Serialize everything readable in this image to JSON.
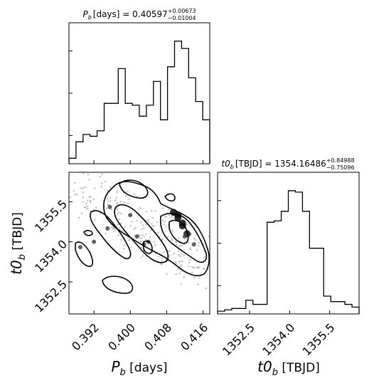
{
  "chart_data": {
    "type": "corner",
    "panels": {
      "pb_hist": {
        "type": "histogram",
        "title_main": "P",
        "title_sub": "b",
        "title_unit": "[days] = 0.40597",
        "title_plus": "+0.00673",
        "title_minus": "−0.01004",
        "xlim": [
          0.3865,
          0.4175
        ],
        "bin_width": 0.00155,
        "counts": [
          3,
          12,
          16,
          15,
          18,
          33,
          33,
          52,
          33,
          32,
          26,
          32,
          45,
          24,
          53,
          67,
          63,
          47,
          34,
          24
        ]
      },
      "t0_hist": {
        "type": "histogram",
        "title_main": "t0",
        "title_sub": "b",
        "title_unit": "[TBJD] = 1354.16486",
        "title_plus": "+0.84988",
        "title_minus": "−0.75096",
        "xlim": [
          1351.3,
          1356.6
        ],
        "bin_width": 0.265,
        "counts": [
          2,
          3,
          4,
          4,
          10,
          7,
          7,
          67,
          68,
          75,
          90,
          89,
          75,
          48,
          48,
          13,
          9,
          9,
          7,
          5
        ]
      },
      "joint": {
        "type": "contour-density",
        "xlim": [
          0.3865,
          0.4175
        ],
        "ylim": [
          1351.3,
          1356.6
        ],
        "dense_points": [
          [
            0.4095,
            1355.1
          ],
          [
            0.4105,
            1354.9
          ],
          [
            0.4115,
            1354.6
          ],
          [
            0.4125,
            1354.3
          ],
          [
            0.4105,
            1355.0
          ],
          [
            0.4115,
            1354.7
          ],
          [
            0.404,
            1354.0
          ],
          [
            0.4015,
            1354.2
          ],
          [
            0.403,
            1353.9
          ],
          [
            0.395,
            1354.5
          ],
          [
            0.4,
            1355.0
          ],
          [
            0.392,
            1354.0
          ],
          [
            0.3955,
            1355.3
          ],
          [
            0.389,
            1353.8
          ],
          [
            0.412,
            1354.2
          ],
          [
            0.414,
            1353.9
          ]
        ]
      }
    },
    "xticks": [
      "0.392",
      "0.400",
      "0.408",
      "0.416"
    ],
    "xtick_values": [
      0.392,
      0.4,
      0.408,
      0.416
    ],
    "yticks": [
      "1352.5",
      "1354.0",
      "1355.5"
    ],
    "ytick_values": [
      1352.5,
      1354.0,
      1355.5
    ],
    "t0_xticks": [
      "1352.5",
      "1354.0",
      "1355.5"
    ],
    "t0_xtick_values": [
      1352.5,
      1354.0,
      1355.5
    ],
    "xlabel_left_main": "P",
    "xlabel_left_sub": "b",
    "xlabel_left_unit": " [days]",
    "xlabel_right_main": "t0",
    "xlabel_right_sub": "b",
    "xlabel_right_unit": " [TBJD]",
    "ylabel_main": "t0",
    "ylabel_sub": "b",
    "ylabel_unit": " [TBJD]"
  }
}
